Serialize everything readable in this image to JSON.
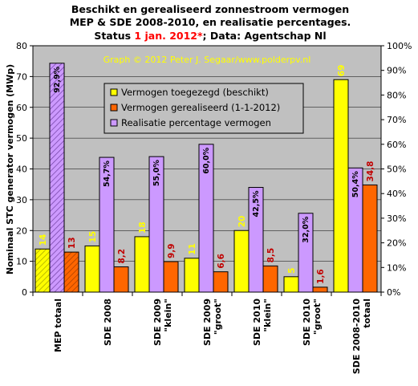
{
  "title": {
    "line1": "Beschikt en gerealiseerd zonnestroom vermogen",
    "line2": "MEP & SDE 2008-2010, en realisatie percentages.",
    "line3_prefix": "Status ",
    "line3_highlight": "1 jan. 2012*",
    "line3_suffix": "; Data: Agentschap Nl"
  },
  "credit": "Graph © 2012 Peter J. Segaar/www.polderpv.nl",
  "colors": {
    "plot_background": "#c0c0c0",
    "toegezegd": "#ffff00",
    "gerealiseerd": "#ff6600",
    "percentage": "#cc99ff",
    "label_yellow": "#ffff00",
    "label_red": "#c00000"
  },
  "chart_data": {
    "type": "bar",
    "ylabel": "Nominaal STC generator vermogen (MWp)",
    "ylim": [
      0,
      80
    ],
    "y_ticks": [
      0,
      10,
      20,
      30,
      40,
      50,
      60,
      70,
      80
    ],
    "y2lim": [
      0,
      100
    ],
    "y2_ticks": [
      "0%",
      "10%",
      "20%",
      "30%",
      "40%",
      "50%",
      "60%",
      "70%",
      "80%",
      "90%",
      "100%"
    ],
    "grid": true,
    "legend_position": "top-center",
    "categories": [
      [
        "MEP totaal"
      ],
      [
        "SDE 2008"
      ],
      [
        "SDE 2009",
        "\"klein\""
      ],
      [
        "SDE 2009",
        "\"groot\""
      ],
      [
        "SDE 2010",
        "\"klein\""
      ],
      [
        "SDE 2010",
        "\"groot\""
      ],
      [
        "SDE 2008-2010",
        "totaal"
      ]
    ],
    "series": [
      {
        "name": "Vermogen toegezegd (beschikt)",
        "axis": "left",
        "values": [
          14,
          15,
          18,
          11,
          20,
          5,
          69
        ],
        "labels": [
          "14",
          "15",
          "18",
          "11",
          "20",
          "5",
          "69"
        ]
      },
      {
        "name": "Vermogen gerealiseerd (1-1-2012)",
        "axis": "left",
        "values": [
          13,
          8.2,
          9.9,
          6.6,
          8.5,
          1.6,
          34.8
        ],
        "labels": [
          "13",
          "8,2",
          "9,9",
          "6,6",
          "8,5",
          "1,6",
          "34,8"
        ]
      },
      {
        "name": "Realisatie percentage vermogen",
        "axis": "right",
        "values": [
          92.9,
          54.7,
          55.0,
          60.0,
          42.5,
          32.0,
          50.4
        ],
        "labels": [
          "92,9%",
          "54,7%",
          "55,0%",
          "60,0%",
          "42,5%",
          "32,0%",
          "50,4%"
        ]
      }
    ]
  }
}
